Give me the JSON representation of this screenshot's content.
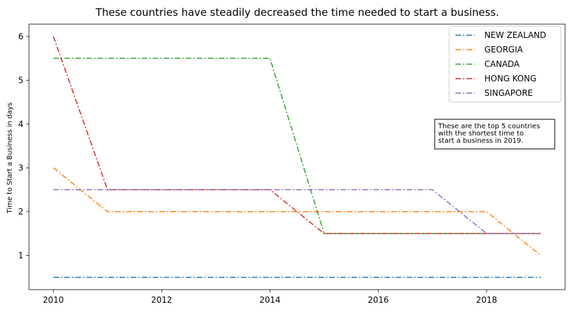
{
  "chart_data": {
    "type": "line",
    "title": "These countries have steadily decreased the time needed to start a business.",
    "xlabel": "",
    "ylabel": "Time to Start a Business in days",
    "x": [
      2010,
      2011,
      2012,
      2013,
      2014,
      2015,
      2016,
      2017,
      2018,
      2019
    ],
    "xlim": [
      2009.55,
      2019.45
    ],
    "ylim": [
      0.22,
      6.28
    ],
    "xticks": [
      2010,
      2012,
      2014,
      2016,
      2018
    ],
    "yticks": [
      1,
      2,
      3,
      4,
      5,
      6
    ],
    "grid": false,
    "legend_position": "top-right",
    "line_style": "dash-dot",
    "series": [
      {
        "name": "NEW ZEALAND",
        "color": "#1f77b4",
        "values": [
          0.5,
          0.5,
          0.5,
          0.5,
          0.5,
          0.5,
          0.5,
          0.5,
          0.5,
          0.5
        ]
      },
      {
        "name": "GEORGIA",
        "color": "#ff7f0e",
        "values": [
          3,
          2,
          2,
          2,
          2,
          2,
          2,
          2,
          2,
          1
        ]
      },
      {
        "name": "CANADA",
        "color": "#2ca02c",
        "values": [
          5.5,
          5.5,
          5.5,
          5.5,
          5.5,
          1.5,
          1.5,
          1.5,
          1.5,
          1.5
        ]
      },
      {
        "name": "HONG KONG",
        "color": "#d62728",
        "values": [
          6,
          2.5,
          2.5,
          2.5,
          2.5,
          1.5,
          1.5,
          1.5,
          1.5,
          1.5
        ]
      },
      {
        "name": "SINGAPORE",
        "color": "#9467bd",
        "values": [
          2.5,
          2.5,
          2.5,
          2.5,
          2.5,
          2.5,
          2.5,
          2.5,
          1.5,
          1.5
        ]
      }
    ],
    "annotation": {
      "lines": [
        "These are the top 5 countries",
        "with the shortest time to",
        "start a business in 2019."
      ],
      "anchor_x": 2017.05,
      "anchor_y": 4.0
    }
  }
}
